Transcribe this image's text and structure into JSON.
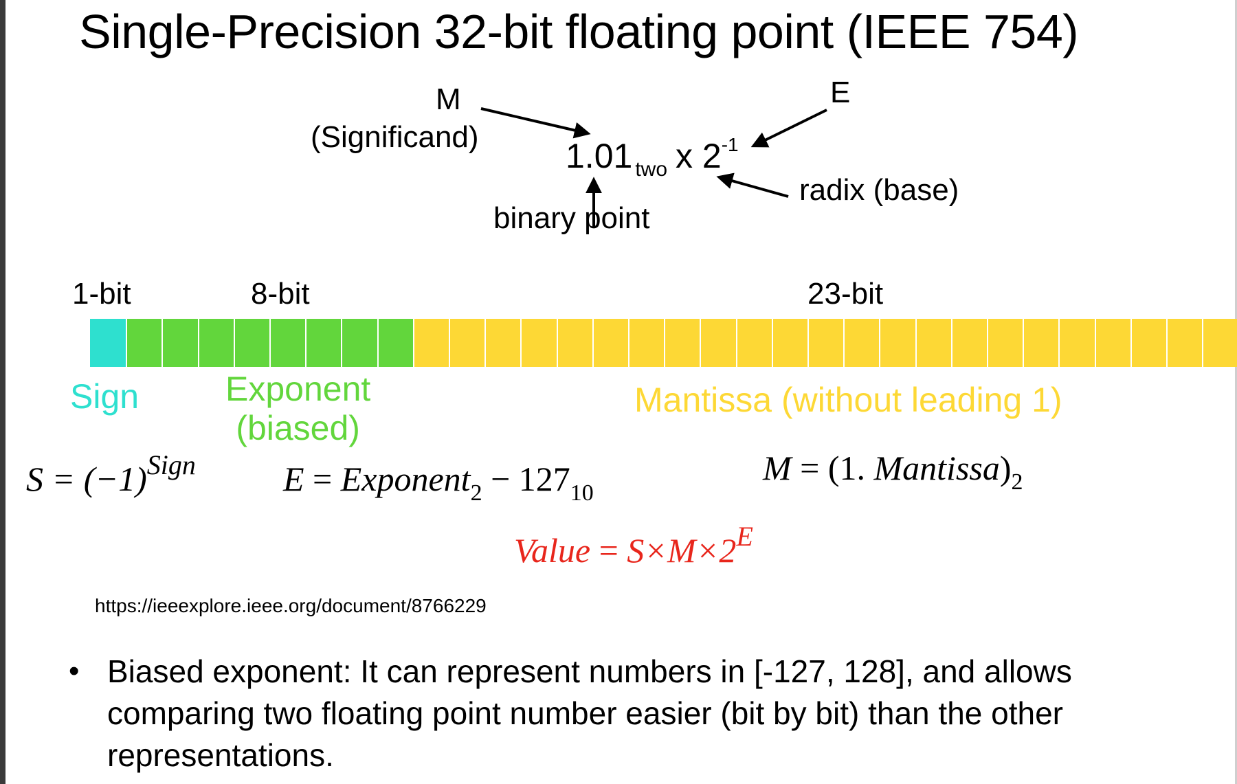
{
  "title": "Single-Precision 32-bit floating point (IEEE 754)",
  "annotation": {
    "m_label": "M",
    "m_sub": "(Significand)",
    "e_label": "E",
    "radix_label": "radix (base)",
    "binary_point_label": "binary point"
  },
  "formula": {
    "mantissa": "1.01",
    "base_sub": "two",
    "times_base": "x 2",
    "exponent": "-1"
  },
  "bit_widths": {
    "sign": "1-bit",
    "exponent": "8-bit",
    "mantissa": "23-bit"
  },
  "bit_counts": {
    "sign": 1,
    "exponent": 8,
    "mantissa": 23
  },
  "colors": {
    "sign": "#2ee0cf",
    "exponent": "#62d63c",
    "mantissa": "#fdd835",
    "value_formula": "#e8261c"
  },
  "fields": {
    "sign": "Sign",
    "exponent_line1": "Exponent",
    "exponent_line2": "(biased)",
    "mantissa": "Mantissa (without leading 1)"
  },
  "equations": {
    "s_lhs": "S = (−1)",
    "s_sup": "Sign",
    "e_lhs": "E",
    "e_eq": " = ",
    "e_var": "Exponent",
    "e_sub": "2",
    "e_rest": " − 127",
    "e_sub2": "10",
    "m_lhs": "M",
    "m_eq": " = (1. ",
    "m_var": "Mantissa",
    "m_close": ")",
    "m_sub": "2",
    "value_lhs": "Value",
    "value_eq": " = ",
    "value_rhs": "S×M×2",
    "value_sup": "E"
  },
  "reference_url": "https://ieeexplore.ieee.org/document/8766229",
  "bullet": {
    "symbol": "•",
    "text": "Biased exponent: It can represent numbers in [-127, 128], and allows comparing two floating point number easier (bit by bit) than the other representations."
  }
}
